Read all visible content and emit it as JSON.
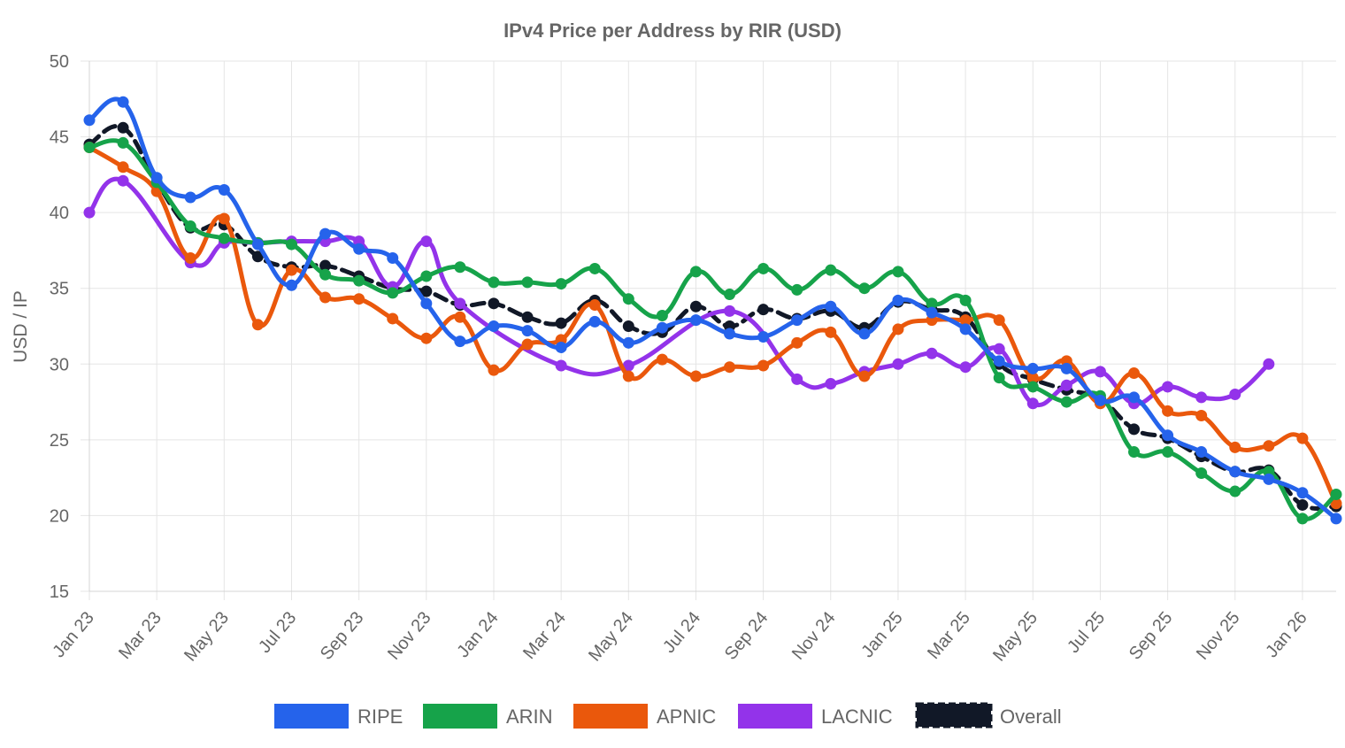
{
  "chart_data": {
    "type": "line",
    "title": "IPv4 Price per Address by RIR (USD)",
    "xlabel": "",
    "ylabel": "USD / IP",
    "ylim": [
      15,
      50
    ],
    "yticks": [
      15,
      20,
      25,
      30,
      35,
      40,
      45,
      50
    ],
    "x": [
      "2023-01",
      "2023-02",
      "2023-03",
      "2023-04",
      "2023-05",
      "2023-06",
      "2023-07",
      "2023-08",
      "2023-09",
      "2023-10",
      "2023-11",
      "2023-12",
      "2024-01",
      "2024-02",
      "2024-03",
      "2024-04",
      "2024-05",
      "2024-06",
      "2024-07",
      "2024-08",
      "2024-09",
      "2024-10",
      "2024-11",
      "2024-12",
      "2025-01",
      "2025-02",
      "2025-03",
      "2025-04",
      "2025-05",
      "2025-06",
      "2025-07",
      "2025-08",
      "2025-09",
      "2025-10",
      "2025-11",
      "2025-12",
      "2026-01",
      "2026-02"
    ],
    "xtick_labels": [
      "Jan 23",
      "Mar 23",
      "May 23",
      "Jul 23",
      "Sep 23",
      "Nov 23",
      "Jan 24",
      "Mar 24",
      "May 24",
      "Jul 24",
      "Sep 24",
      "Nov 24",
      "Jan 25",
      "Mar 25",
      "May 25",
      "Jul 25",
      "Sep 25",
      "Nov 25",
      "Jan 26"
    ],
    "grid": true,
    "legend_position": "bottom",
    "series": [
      {
        "name": "RIPE",
        "color": "#2563eb",
        "dashed": false,
        "values": [
          46.1,
          47.3,
          42.3,
          41.0,
          41.5,
          37.9,
          35.2,
          38.6,
          37.6,
          37.0,
          34.0,
          31.5,
          32.5,
          32.2,
          31.1,
          32.8,
          31.4,
          32.4,
          32.9,
          32.0,
          31.8,
          32.9,
          33.8,
          32.0,
          34.2,
          33.4,
          32.3,
          30.2,
          29.7,
          29.7,
          27.6,
          27.8,
          25.3,
          24.2,
          22.9,
          22.4,
          21.5,
          19.8
        ]
      },
      {
        "name": "ARIN",
        "color": "#16a34a",
        "dashed": false,
        "values": [
          44.3,
          44.6,
          42.0,
          39.1,
          38.3,
          38.0,
          37.9,
          35.9,
          35.5,
          34.7,
          35.8,
          36.4,
          35.4,
          35.4,
          35.3,
          36.3,
          34.3,
          33.2,
          36.1,
          34.6,
          36.3,
          34.9,
          36.2,
          35.0,
          36.1,
          34.0,
          34.2,
          29.1,
          28.5,
          27.5,
          27.9,
          24.2,
          24.2,
          22.8,
          21.6,
          22.9,
          19.8,
          21.4
        ]
      },
      {
        "name": "APNIC",
        "color": "#ea580c",
        "dashed": false,
        "values": [
          44.3,
          43.0,
          41.4,
          37.0,
          39.6,
          32.6,
          36.2,
          34.4,
          34.3,
          33.0,
          31.7,
          33.1,
          29.6,
          31.3,
          31.6,
          33.9,
          29.2,
          30.3,
          29.2,
          29.8,
          29.9,
          31.4,
          32.1,
          29.2,
          32.3,
          32.9,
          32.9,
          32.9,
          29.1,
          30.2,
          27.4,
          29.4,
          26.9,
          26.6,
          24.5,
          24.6,
          25.1,
          20.8
        ]
      },
      {
        "name": "LACNIC",
        "color": "#9333ea",
        "dashed": false,
        "values": [
          40.0,
          42.1,
          null,
          36.7,
          38.0,
          38.0,
          38.1,
          38.1,
          38.1,
          35.1,
          38.1,
          34.0,
          null,
          null,
          29.9,
          null,
          29.9,
          null,
          null,
          33.5,
          null,
          29.0,
          28.7,
          29.5,
          30.0,
          30.7,
          29.8,
          31.0,
          27.4,
          28.6,
          29.5,
          27.4,
          28.5,
          27.8,
          28.0,
          30.0,
          null,
          null
        ]
      },
      {
        "name": "Overall",
        "color": "#111827",
        "dashed": true,
        "values": [
          44.5,
          45.6,
          42.0,
          39.0,
          39.2,
          37.1,
          36.4,
          36.5,
          35.8,
          35.0,
          34.8,
          33.9,
          34.0,
          33.1,
          32.7,
          34.2,
          32.5,
          32.1,
          33.8,
          32.5,
          33.6,
          33.0,
          33.5,
          32.4,
          34.1,
          33.6,
          33.1,
          30.0,
          29.0,
          28.3,
          27.7,
          25.7,
          25.1,
          23.9,
          22.9,
          23.0,
          20.7,
          20.6
        ]
      }
    ]
  }
}
